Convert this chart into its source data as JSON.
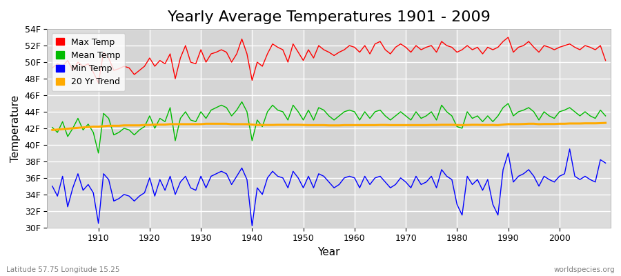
{
  "title": "Yearly Average Temperatures 1901 - 2009",
  "xlabel": "Year",
  "ylabel": "Temperature",
  "lat_lon_label": "Latitude 57.75 Longitude 15.25",
  "watermark": "worldspecies.org",
  "years": [
    1901,
    1902,
    1903,
    1904,
    1905,
    1906,
    1907,
    1908,
    1909,
    1910,
    1911,
    1912,
    1913,
    1914,
    1915,
    1916,
    1917,
    1918,
    1919,
    1920,
    1921,
    1922,
    1923,
    1924,
    1925,
    1926,
    1927,
    1928,
    1929,
    1930,
    1931,
    1932,
    1933,
    1934,
    1935,
    1936,
    1937,
    1938,
    1939,
    1940,
    1941,
    1942,
    1943,
    1944,
    1945,
    1946,
    1947,
    1948,
    1949,
    1950,
    1951,
    1952,
    1953,
    1954,
    1955,
    1956,
    1957,
    1958,
    1959,
    1960,
    1961,
    1962,
    1963,
    1964,
    1965,
    1966,
    1967,
    1968,
    1969,
    1970,
    1971,
    1972,
    1973,
    1974,
    1975,
    1976,
    1977,
    1978,
    1979,
    1980,
    1981,
    1982,
    1983,
    1984,
    1985,
    1986,
    1987,
    1988,
    1989,
    1990,
    1991,
    1992,
    1993,
    1994,
    1995,
    1996,
    1997,
    1998,
    1999,
    2000,
    2001,
    2002,
    2003,
    2004,
    2005,
    2006,
    2007,
    2008,
    2009
  ],
  "max_temp": [
    49.3,
    49.8,
    49.5,
    50.2,
    49.0,
    50.0,
    49.5,
    49.8,
    48.8,
    47.5,
    51.2,
    50.5,
    49.0,
    49.2,
    49.5,
    49.3,
    48.5,
    49.0,
    49.5,
    50.5,
    49.5,
    50.2,
    49.8,
    51.0,
    48.0,
    50.5,
    52.0,
    50.0,
    49.8,
    51.5,
    50.0,
    51.0,
    51.2,
    51.5,
    51.2,
    50.0,
    51.0,
    52.8,
    51.0,
    47.8,
    50.0,
    49.5,
    51.0,
    52.2,
    51.8,
    51.5,
    50.0,
    52.2,
    51.2,
    50.2,
    51.5,
    50.5,
    52.0,
    51.5,
    51.2,
    50.8,
    51.2,
    51.5,
    52.0,
    51.8,
    51.2,
    52.0,
    51.0,
    52.2,
    52.5,
    51.5,
    51.0,
    51.8,
    52.2,
    51.8,
    51.2,
    52.0,
    51.5,
    51.8,
    52.0,
    51.2,
    52.5,
    52.0,
    51.8,
    51.2,
    51.5,
    52.0,
    51.5,
    51.8,
    51.0,
    51.8,
    51.5,
    51.8,
    52.5,
    53.0,
    51.2,
    51.8,
    52.0,
    52.5,
    51.8,
    51.2,
    52.0,
    51.8,
    51.5,
    51.8,
    52.0,
    52.2,
    51.8,
    51.5,
    52.0,
    51.8,
    51.5,
    52.0,
    50.2
  ],
  "mean_temp": [
    42.1,
    41.5,
    42.8,
    41.0,
    42.0,
    43.2,
    41.8,
    42.5,
    41.5,
    39.0,
    43.8,
    43.2,
    41.2,
    41.5,
    42.0,
    41.8,
    41.2,
    41.8,
    42.2,
    43.5,
    42.0,
    43.2,
    42.8,
    44.5,
    40.5,
    43.2,
    44.0,
    43.0,
    42.8,
    44.0,
    43.2,
    44.2,
    44.5,
    44.8,
    44.5,
    43.5,
    44.2,
    45.2,
    44.0,
    40.5,
    43.0,
    42.2,
    44.0,
    44.8,
    44.2,
    44.0,
    43.0,
    44.8,
    44.0,
    43.0,
    44.2,
    43.0,
    44.5,
    44.2,
    43.5,
    43.0,
    43.5,
    44.0,
    44.2,
    44.0,
    43.0,
    44.0,
    43.2,
    44.0,
    44.2,
    43.5,
    43.0,
    43.5,
    44.0,
    43.5,
    43.0,
    44.0,
    43.2,
    43.5,
    44.0,
    43.0,
    44.8,
    44.0,
    43.5,
    42.2,
    42.0,
    44.0,
    43.2,
    43.5,
    42.8,
    43.5,
    42.8,
    43.5,
    44.5,
    45.0,
    43.5,
    44.0,
    44.2,
    44.5,
    44.0,
    43.0,
    44.0,
    43.5,
    43.2,
    44.0,
    44.2,
    44.5,
    44.0,
    43.5,
    44.0,
    43.5,
    43.2,
    44.2,
    43.5
  ],
  "min_temp": [
    35.0,
    33.8,
    36.2,
    32.5,
    34.8,
    36.5,
    34.5,
    35.2,
    34.2,
    30.5,
    36.5,
    35.8,
    33.2,
    33.5,
    34.0,
    33.8,
    33.2,
    33.8,
    34.2,
    36.0,
    33.8,
    35.8,
    34.5,
    36.2,
    34.0,
    35.5,
    36.2,
    34.8,
    34.5,
    36.2,
    34.8,
    36.2,
    36.5,
    36.8,
    36.5,
    35.2,
    36.2,
    37.2,
    35.8,
    30.2,
    34.8,
    34.0,
    36.0,
    36.8,
    36.2,
    36.0,
    34.8,
    36.8,
    36.0,
    34.8,
    36.2,
    34.8,
    36.5,
    36.2,
    35.5,
    34.8,
    35.2,
    36.0,
    36.2,
    36.0,
    34.8,
    36.2,
    35.2,
    36.0,
    36.2,
    35.5,
    34.8,
    35.2,
    36.0,
    35.5,
    34.8,
    36.2,
    35.2,
    35.5,
    36.2,
    34.8,
    37.0,
    36.2,
    35.8,
    32.8,
    31.5,
    36.2,
    35.2,
    35.8,
    34.5,
    35.8,
    32.8,
    31.5,
    37.0,
    39.0,
    35.5,
    36.2,
    36.5,
    37.0,
    36.2,
    35.0,
    36.2,
    35.8,
    35.5,
    36.2,
    36.5,
    39.5,
    36.2,
    35.8,
    36.2,
    35.8,
    35.5,
    38.2,
    37.8
  ],
  "trend": [
    41.8,
    41.85,
    41.9,
    41.95,
    42.0,
    42.05,
    42.1,
    42.15,
    42.2,
    42.2,
    42.25,
    42.3,
    42.3,
    42.3,
    42.35,
    42.35,
    42.35,
    42.35,
    42.4,
    42.4,
    42.45,
    42.45,
    42.45,
    42.5,
    42.5,
    42.5,
    42.5,
    42.5,
    42.5,
    42.5,
    42.55,
    42.55,
    42.55,
    42.55,
    42.55,
    42.5,
    42.5,
    42.5,
    42.5,
    42.45,
    42.4,
    42.4,
    42.4,
    42.4,
    42.42,
    42.42,
    42.42,
    42.42,
    42.42,
    42.4,
    42.38,
    42.38,
    42.38,
    42.38,
    42.35,
    42.35,
    42.35,
    42.38,
    42.38,
    42.38,
    42.38,
    42.38,
    42.38,
    42.38,
    42.4,
    42.4,
    42.38,
    42.38,
    42.38,
    42.38,
    42.38,
    42.38,
    42.38,
    42.38,
    42.4,
    42.4,
    42.42,
    42.42,
    42.42,
    42.4,
    42.38,
    42.4,
    42.42,
    42.42,
    42.4,
    42.4,
    42.4,
    42.38,
    42.45,
    42.5,
    42.5,
    42.5,
    42.52,
    42.55,
    42.55,
    42.5,
    42.52,
    42.52,
    42.52,
    42.55,
    42.55,
    42.58,
    42.58,
    42.58,
    42.6,
    42.6,
    42.6,
    42.62,
    42.65
  ],
  "max_color": "#ff0000",
  "mean_color": "#00bb00",
  "min_color": "#0000ff",
  "trend_color": "#ffaa00",
  "bg_color": "#ffffff",
  "plot_bg_color": "#dcdcdc",
  "grid_color": "#ffffff",
  "ylim": [
    30,
    54
  ],
  "yticks": [
    30,
    32,
    34,
    36,
    38,
    40,
    42,
    44,
    46,
    48,
    50,
    52,
    54
  ],
  "ytick_labels": [
    "30F",
    "32F",
    "34F",
    "36F",
    "38F",
    "40F",
    "42F",
    "44F",
    "46F",
    "48F",
    "50F",
    "52F",
    "54F"
  ],
  "xticks": [
    1910,
    1920,
    1930,
    1940,
    1950,
    1960,
    1970,
    1980,
    1990,
    2000
  ],
  "title_fontsize": 16,
  "axis_fontsize": 11,
  "tick_fontsize": 9,
  "legend_fontsize": 9
}
